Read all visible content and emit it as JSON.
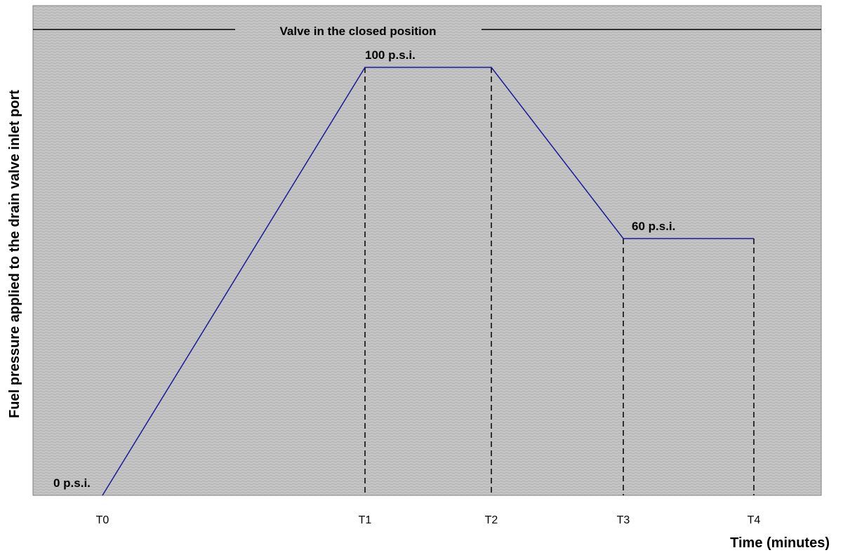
{
  "chart_data": {
    "type": "line",
    "title": "",
    "xlabel": "Time (minutes)",
    "ylabel": "Fuel pressure applied to the drain valve inlet port",
    "categories": [
      "T0",
      "T1",
      "T2",
      "T3",
      "T4"
    ],
    "series": [
      {
        "values": [
          0,
          100,
          100,
          60,
          60
        ]
      }
    ],
    "ylim": [
      0,
      100
    ],
    "grid": false,
    "data_labels": [
      {
        "category": "T0",
        "text": "0 p.s.i."
      },
      {
        "category": "T1",
        "text": "100 p.s.i."
      },
      {
        "category": "T3",
        "text": "60 p.s.i."
      }
    ],
    "annotation": "Valve in the closed position",
    "line_color": "#1a1a9a",
    "plot_background": "#c3c3c3"
  }
}
